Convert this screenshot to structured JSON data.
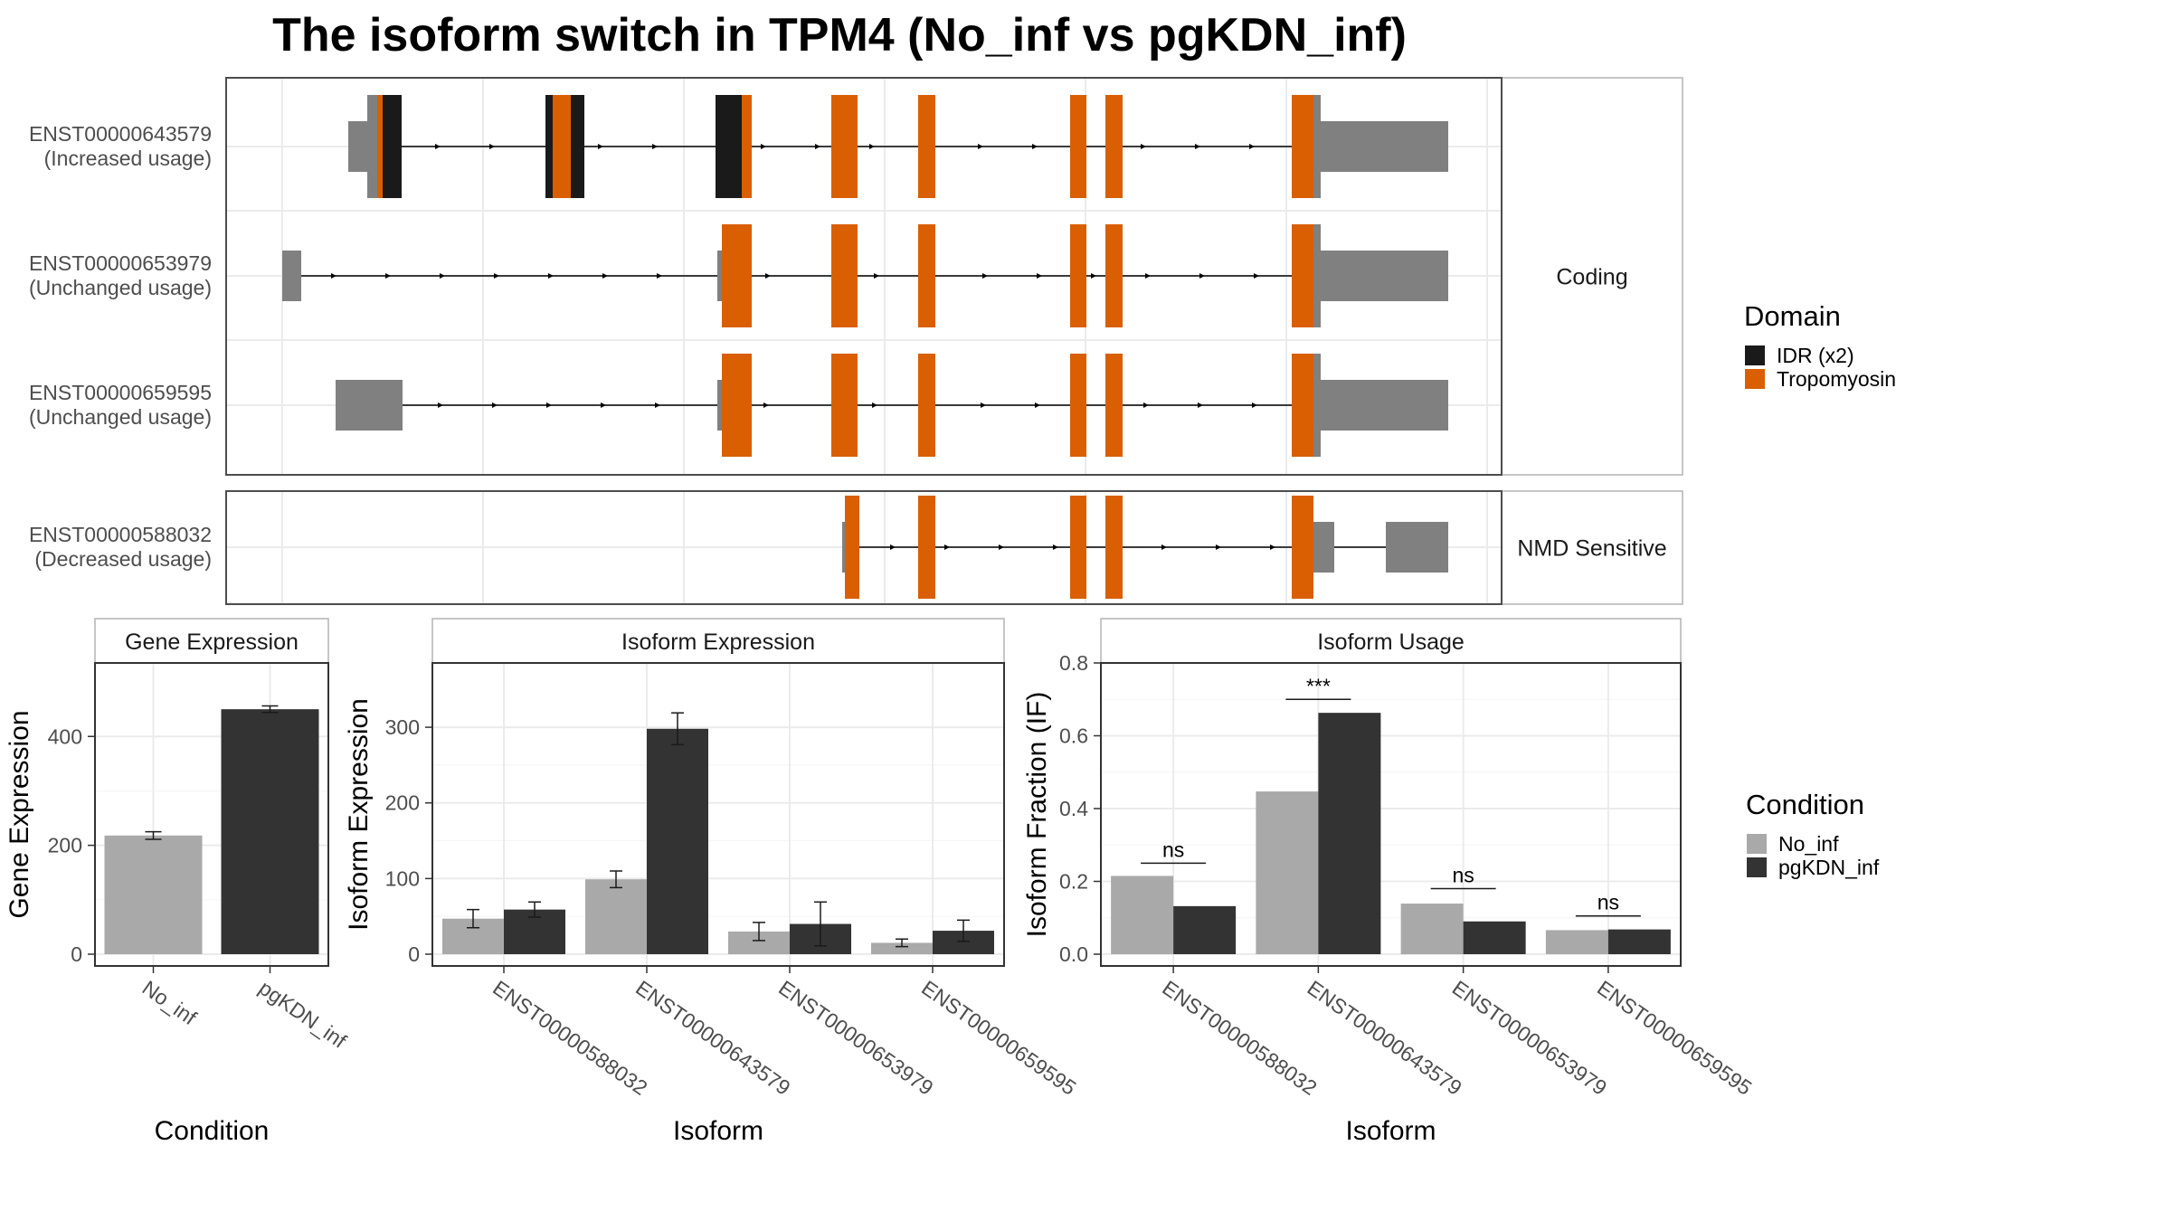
{
  "colors": {
    "idr": "#1a1a1a",
    "tropomyosin": "#d95f02",
    "utr": "#808080",
    "no_inf": "#a9a9a9",
    "pgkdn_inf": "#333333",
    "grid": "#ebebeb",
    "panel_border": "#4d4d4d",
    "strip_border": "#b3b3b3"
  },
  "title": "The isoform switch in TPM4 (No_inf vs pgKDN_inf)",
  "gene_structure": {
    "facets": [
      {
        "label": "Coding",
        "isoforms": [
          "ENST00000643579",
          "ENST00000653979",
          "ENST00000659595"
        ]
      },
      {
        "label": "NMD Sensitive",
        "isoforms": [
          "ENST00000588032"
        ]
      }
    ],
    "isoforms": [
      {
        "id": "ENST00000643579",
        "usage": "(Increased usage)"
      },
      {
        "id": "ENST00000653979",
        "usage": "(Unchanged usage)"
      },
      {
        "id": "ENST00000659595",
        "usage": "(Unchanged usage)"
      },
      {
        "id": "ENST00000588032",
        "usage": "(Decreased usage)"
      }
    ],
    "domain_legend": {
      "title": "Domain",
      "entries": [
        {
          "label": "IDR (x2)",
          "color_key": "idr"
        },
        {
          "label": "Tropomyosin",
          "color_key": "tropomyosin"
        }
      ]
    }
  },
  "chart_data": [
    {
      "type": "bar",
      "panel": "Gene Expression",
      "categories": [
        "No_inf",
        "pgKDN_inf"
      ],
      "values": [
        218,
        450
      ],
      "errors": [
        7,
        6
      ],
      "xlabel": "Condition",
      "ylabel": "Gene Expression",
      "ylim": [
        0,
        535
      ],
      "yticks": [
        0,
        200,
        400
      ]
    },
    {
      "type": "bar",
      "panel": "Isoform Expression",
      "categories": [
        "ENST00000588032",
        "ENST00000643579",
        "ENST00000653979",
        "ENST00000659595"
      ],
      "series": [
        {
          "name": "No_inf",
          "values": [
            47,
            99,
            30,
            15
          ],
          "errors": [
            12,
            11,
            12,
            5
          ]
        },
        {
          "name": "pgKDN_inf",
          "values": [
            59,
            298,
            40,
            31
          ],
          "errors": [
            10,
            21,
            29,
            14
          ]
        }
      ],
      "xlabel": "Isoform",
      "ylabel": "Isoform Expression",
      "ylim": [
        0,
        385
      ],
      "yticks": [
        0,
        100,
        200,
        300
      ]
    },
    {
      "type": "bar",
      "panel": "Isoform Usage",
      "categories": [
        "ENST00000588032",
        "ENST00000643579",
        "ENST00000653979",
        "ENST00000659595"
      ],
      "series": [
        {
          "name": "No_inf",
          "values": [
            0.215,
            0.447,
            0.139,
            0.066
          ]
        },
        {
          "name": "pgKDN_inf",
          "values": [
            0.132,
            0.663,
            0.09,
            0.068
          ]
        }
      ],
      "significance": [
        "ns",
        "***",
        "ns",
        "ns"
      ],
      "significance_y": [
        0.25,
        0.7,
        0.18,
        0.105
      ],
      "xlabel": "Isoform",
      "ylabel": "Isoform Fraction (IF)",
      "ylim": [
        0,
        0.8
      ],
      "yticks": [
        0.0,
        0.2,
        0.4,
        0.6,
        0.8
      ],
      "ytick_labels": [
        "0.0",
        "0.2",
        "0.4",
        "0.6",
        "0.8"
      ]
    }
  ],
  "condition_legend": {
    "title": "Condition",
    "entries": [
      {
        "label": "No_inf",
        "color_key": "no_inf"
      },
      {
        "label": "pgKDN_inf",
        "color_key": "pgkdn_inf"
      }
    ]
  }
}
